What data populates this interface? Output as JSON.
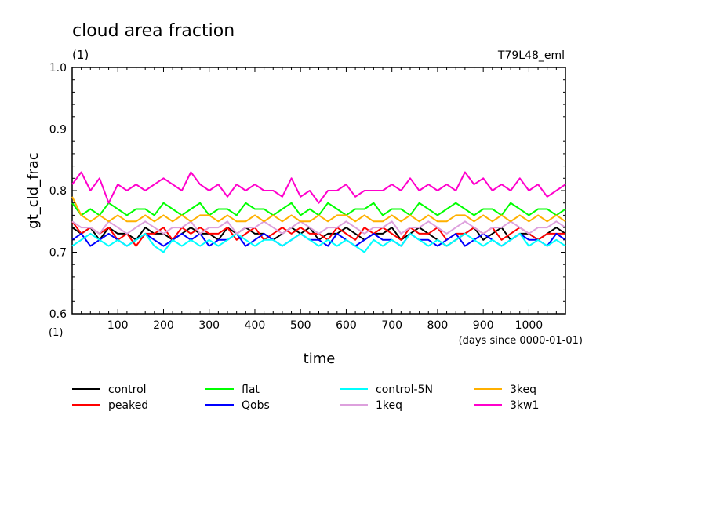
{
  "chart_data": {
    "type": "line",
    "title": "cloud area fraction",
    "subtitle": "(1)",
    "experiment": "T79L48_eml",
    "ylabel": "gt_cld_frac",
    "yunit": "(1)",
    "xlabel": "time",
    "xunit": "(days since 0000-01-01)",
    "xlim": [
      0,
      1080
    ],
    "ylim": [
      0.6,
      1.0
    ],
    "xticks": [
      100,
      200,
      300,
      400,
      500,
      600,
      700,
      800,
      900,
      1000
    ],
    "xtick_labels": [
      "100",
      "200",
      "300",
      "400",
      "500",
      "600",
      "700",
      "800",
      "900",
      "1000"
    ],
    "yticks": [
      0.6,
      0.7,
      0.8,
      0.9,
      1.0
    ],
    "ytick_labels": [
      "0.6",
      "0.7",
      "0.8",
      "0.9",
      "1.0"
    ],
    "legend_position": "bottom",
    "x": [
      0,
      20,
      40,
      60,
      80,
      100,
      120,
      140,
      160,
      180,
      200,
      220,
      240,
      260,
      280,
      300,
      320,
      340,
      360,
      380,
      400,
      420,
      440,
      460,
      480,
      500,
      520,
      540,
      560,
      580,
      600,
      620,
      640,
      660,
      680,
      700,
      720,
      740,
      760,
      780,
      800,
      820,
      840,
      860,
      880,
      900,
      920,
      940,
      960,
      980,
      1000,
      1020,
      1040,
      1060,
      1080
    ],
    "series": [
      {
        "name": "control",
        "color": "#000000",
        "values": [
          0.74,
          0.73,
          0.74,
          0.72,
          0.74,
          0.73,
          0.73,
          0.72,
          0.74,
          0.73,
          0.73,
          0.72,
          0.73,
          0.74,
          0.73,
          0.73,
          0.72,
          0.74,
          0.73,
          0.74,
          0.73,
          0.73,
          0.72,
          0.73,
          0.74,
          0.73,
          0.74,
          0.72,
          0.73,
          0.73,
          0.74,
          0.73,
          0.72,
          0.73,
          0.73,
          0.74,
          0.72,
          0.73,
          0.74,
          0.73,
          0.72,
          0.71,
          0.72,
          0.73,
          0.74,
          0.72,
          0.73,
          0.74,
          0.72,
          0.73,
          0.73,
          0.72,
          0.73,
          0.74,
          0.73
        ]
      },
      {
        "name": "peaked",
        "color": "#ff0000",
        "values": [
          0.75,
          0.73,
          0.74,
          0.73,
          0.74,
          0.72,
          0.73,
          0.71,
          0.73,
          0.73,
          0.74,
          0.72,
          0.74,
          0.73,
          0.74,
          0.73,
          0.73,
          0.74,
          0.72,
          0.73,
          0.74,
          0.72,
          0.73,
          0.74,
          0.73,
          0.74,
          0.73,
          0.73,
          0.72,
          0.74,
          0.73,
          0.72,
          0.74,
          0.73,
          0.74,
          0.73,
          0.72,
          0.74,
          0.73,
          0.73,
          0.74,
          0.72,
          0.73,
          0.73,
          0.74,
          0.73,
          0.74,
          0.72,
          0.73,
          0.74,
          0.73,
          0.72,
          0.73,
          0.73,
          0.73
        ]
      },
      {
        "name": "flat",
        "color": "#00ff00",
        "values": [
          0.78,
          0.76,
          0.77,
          0.76,
          0.78,
          0.77,
          0.76,
          0.77,
          0.77,
          0.76,
          0.78,
          0.77,
          0.76,
          0.77,
          0.78,
          0.76,
          0.77,
          0.77,
          0.76,
          0.78,
          0.77,
          0.77,
          0.76,
          0.77,
          0.78,
          0.76,
          0.77,
          0.76,
          0.78,
          0.77,
          0.76,
          0.77,
          0.77,
          0.78,
          0.76,
          0.77,
          0.77,
          0.76,
          0.78,
          0.77,
          0.76,
          0.77,
          0.78,
          0.77,
          0.76,
          0.77,
          0.77,
          0.76,
          0.78,
          0.77,
          0.76,
          0.77,
          0.77,
          0.76,
          0.77
        ]
      },
      {
        "name": "Qobs",
        "color": "#0000ff",
        "values": [
          0.72,
          0.73,
          0.71,
          0.72,
          0.73,
          0.72,
          0.71,
          0.72,
          0.73,
          0.72,
          0.71,
          0.72,
          0.73,
          0.72,
          0.73,
          0.71,
          0.72,
          0.72,
          0.73,
          0.71,
          0.72,
          0.73,
          0.72,
          0.71,
          0.72,
          0.73,
          0.72,
          0.72,
          0.71,
          0.73,
          0.72,
          0.71,
          0.72,
          0.73,
          0.72,
          0.72,
          0.71,
          0.73,
          0.72,
          0.72,
          0.71,
          0.72,
          0.73,
          0.71,
          0.72,
          0.73,
          0.72,
          0.71,
          0.72,
          0.73,
          0.72,
          0.72,
          0.71,
          0.73,
          0.72
        ]
      },
      {
        "name": "control-5N",
        "color": "#00ffff",
        "values": [
          0.71,
          0.72,
          0.73,
          0.72,
          0.71,
          0.72,
          0.71,
          0.72,
          0.73,
          0.71,
          0.7,
          0.72,
          0.71,
          0.72,
          0.71,
          0.72,
          0.71,
          0.72,
          0.73,
          0.72,
          0.71,
          0.72,
          0.72,
          0.71,
          0.72,
          0.73,
          0.72,
          0.71,
          0.72,
          0.71,
          0.72,
          0.71,
          0.7,
          0.72,
          0.71,
          0.72,
          0.71,
          0.73,
          0.72,
          0.71,
          0.72,
          0.71,
          0.72,
          0.73,
          0.72,
          0.71,
          0.72,
          0.71,
          0.72,
          0.73,
          0.71,
          0.72,
          0.71,
          0.72,
          0.71
        ]
      },
      {
        "name": "1keq",
        "color": "#dda0dd",
        "values": [
          0.75,
          0.74,
          0.74,
          0.73,
          0.75,
          0.74,
          0.73,
          0.74,
          0.75,
          0.74,
          0.73,
          0.74,
          0.74,
          0.75,
          0.73,
          0.74,
          0.74,
          0.75,
          0.73,
          0.74,
          0.74,
          0.75,
          0.74,
          0.73,
          0.74,
          0.75,
          0.74,
          0.73,
          0.74,
          0.74,
          0.75,
          0.74,
          0.73,
          0.74,
          0.74,
          0.75,
          0.73,
          0.74,
          0.74,
          0.75,
          0.74,
          0.73,
          0.74,
          0.75,
          0.74,
          0.73,
          0.74,
          0.74,
          0.75,
          0.74,
          0.73,
          0.74,
          0.74,
          0.75,
          0.74
        ]
      },
      {
        "name": "3keq",
        "color": "#ffb000",
        "values": [
          0.79,
          0.76,
          0.75,
          0.76,
          0.75,
          0.76,
          0.75,
          0.75,
          0.76,
          0.75,
          0.76,
          0.75,
          0.76,
          0.75,
          0.76,
          0.76,
          0.75,
          0.76,
          0.75,
          0.75,
          0.76,
          0.75,
          0.76,
          0.75,
          0.76,
          0.75,
          0.75,
          0.76,
          0.75,
          0.76,
          0.76,
          0.75,
          0.76,
          0.75,
          0.75,
          0.76,
          0.75,
          0.76,
          0.75,
          0.76,
          0.75,
          0.75,
          0.76,
          0.76,
          0.75,
          0.76,
          0.75,
          0.76,
          0.75,
          0.76,
          0.75,
          0.76,
          0.75,
          0.76,
          0.75
        ]
      },
      {
        "name": "3kw1",
        "color": "#ff00cc",
        "values": [
          0.81,
          0.83,
          0.8,
          0.82,
          0.78,
          0.81,
          0.8,
          0.81,
          0.8,
          0.81,
          0.82,
          0.81,
          0.8,
          0.83,
          0.81,
          0.8,
          0.81,
          0.79,
          0.81,
          0.8,
          0.81,
          0.8,
          0.8,
          0.79,
          0.82,
          0.79,
          0.8,
          0.78,
          0.8,
          0.8,
          0.81,
          0.79,
          0.8,
          0.8,
          0.8,
          0.81,
          0.8,
          0.82,
          0.8,
          0.81,
          0.8,
          0.81,
          0.8,
          0.83,
          0.81,
          0.82,
          0.8,
          0.81,
          0.8,
          0.82,
          0.8,
          0.81,
          0.79,
          0.8,
          0.81
        ]
      }
    ]
  }
}
